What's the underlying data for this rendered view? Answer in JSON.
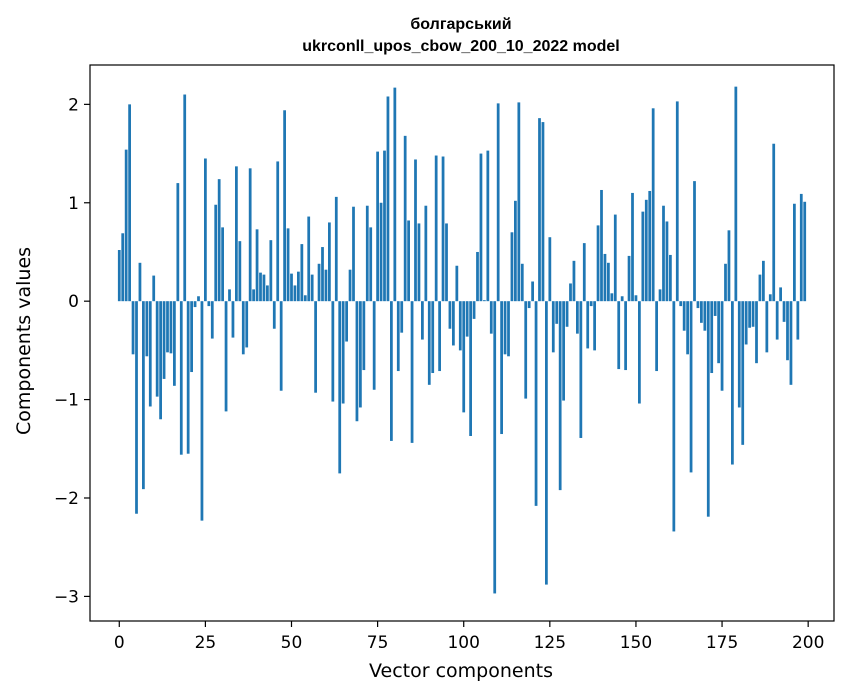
{
  "chart_data": {
    "type": "bar",
    "title": "болгарський",
    "subtitle": "ukrconll_upos_cbow_200_10_2022 model",
    "xlabel": "Vector components",
    "ylabel": "Components values",
    "xlim": [
      -8.5,
      207.5
    ],
    "ylim": [
      -3.25,
      2.4
    ],
    "xticks": [
      0,
      25,
      50,
      75,
      100,
      125,
      150,
      175,
      200
    ],
    "yticks": [
      -3,
      -2,
      -1,
      0,
      1,
      2
    ],
    "bar_color": "#1f77b4",
    "x": [
      0,
      1,
      2,
      3,
      4,
      5,
      6,
      7,
      8,
      9,
      10,
      11,
      12,
      13,
      14,
      15,
      16,
      17,
      18,
      19,
      20,
      21,
      22,
      23,
      24,
      25,
      26,
      27,
      28,
      29,
      30,
      31,
      32,
      33,
      34,
      35,
      36,
      37,
      38,
      39,
      40,
      41,
      42,
      43,
      44,
      45,
      46,
      47,
      48,
      49,
      50,
      51,
      52,
      53,
      54,
      55,
      56,
      57,
      58,
      59,
      60,
      61,
      62,
      63,
      64,
      65,
      66,
      67,
      68,
      69,
      70,
      71,
      72,
      73,
      74,
      75,
      76,
      77,
      78,
      79,
      80,
      81,
      82,
      83,
      84,
      85,
      86,
      87,
      88,
      89,
      90,
      91,
      92,
      93,
      94,
      95,
      96,
      97,
      98,
      99,
      100,
      101,
      102,
      103,
      104,
      105,
      106,
      107,
      108,
      109,
      110,
      111,
      112,
      113,
      114,
      115,
      116,
      117,
      118,
      119,
      120,
      121,
      122,
      123,
      124,
      125,
      126,
      127,
      128,
      129,
      130,
      131,
      132,
      133,
      134,
      135,
      136,
      137,
      138,
      139,
      140,
      141,
      142,
      143,
      144,
      145,
      146,
      147,
      148,
      149,
      150,
      151,
      152,
      153,
      154,
      155,
      156,
      157,
      158,
      159,
      160,
      161,
      162,
      163,
      164,
      165,
      166,
      167,
      168,
      169,
      170,
      171,
      172,
      173,
      174,
      175,
      176,
      177,
      178,
      179,
      180,
      181,
      182,
      183,
      184,
      185,
      186,
      187,
      188,
      189,
      190,
      191,
      192,
      193,
      194,
      195,
      196,
      197,
      198,
      199
    ],
    "values": [
      0.52,
      0.69,
      1.54,
      2.0,
      -0.54,
      -2.16,
      0.39,
      -1.91,
      -0.56,
      -1.07,
      0.26,
      -0.97,
      -1.2,
      -0.79,
      -0.52,
      -0.53,
      -0.86,
      1.2,
      -1.56,
      2.1,
      -1.55,
      -0.72,
      -0.06,
      0.05,
      -2.23,
      1.45,
      -0.05,
      -0.38,
      0.98,
      1.24,
      0.75,
      -1.12,
      0.12,
      -0.37,
      1.37,
      0.61,
      -0.54,
      -0.47,
      1.35,
      0.12,
      0.73,
      0.29,
      0.27,
      0.16,
      0.62,
      -0.28,
      1.42,
      -0.91,
      1.94,
      0.74,
      0.28,
      0.16,
      0.3,
      0.58,
      0.06,
      0.86,
      0.27,
      -0.93,
      0.38,
      0.55,
      0.32,
      0.8,
      -1.02,
      1.06,
      -1.75,
      -1.04,
      -0.41,
      0.32,
      0.96,
      -1.22,
      -1.08,
      -0.7,
      0.97,
      0.75,
      -0.9,
      1.52,
      1.0,
      1.53,
      2.08,
      -1.42,
      2.17,
      -0.71,
      -0.32,
      1.68,
      0.82,
      -1.44,
      1.44,
      0.79,
      -0.39,
      0.97,
      -0.85,
      -0.73,
      1.48,
      -0.71,
      1.47,
      0.79,
      -0.28,
      -0.45,
      0.36,
      -0.5,
      -1.13,
      -0.36,
      -1.37,
      -0.18,
      0.5,
      1.5,
      0.01,
      1.53,
      -0.33,
      -2.97,
      2.01,
      -1.35,
      -0.54,
      -0.56,
      0.7,
      1.02,
      2.02,
      0.38,
      -0.99,
      -0.07,
      0.2,
      -2.08,
      1.86,
      1.82,
      -2.88,
      0.65,
      -0.52,
      -0.23,
      -1.92,
      -1.01,
      -0.26,
      0.18,
      0.41,
      -0.33,
      -1.39,
      0.59,
      -0.48,
      -0.05,
      -0.5,
      0.77,
      1.13,
      0.48,
      0.39,
      0.08,
      0.88,
      -0.69,
      0.05,
      -0.7,
      0.46,
      1.1,
      0.06,
      -1.04,
      0.91,
      1.03,
      1.12,
      1.96,
      -0.71,
      0.12,
      0.97,
      0.81,
      0.47,
      -2.34,
      2.03,
      -0.05,
      -0.3,
      -0.54,
      -1.74,
      1.22,
      -0.07,
      -0.22,
      -0.3,
      -2.19,
      -0.73,
      -0.15,
      -0.63,
      -0.91,
      0.38,
      0.72,
      -1.66,
      2.18,
      -1.08,
      -1.46,
      -0.44,
      -0.27,
      -0.26,
      -0.63,
      0.27,
      0.41,
      -0.52,
      0.07,
      1.6,
      -0.39,
      0.14,
      -0.21,
      -0.6,
      -0.85,
      0.99,
      -0.39,
      1.09,
      1.01
    ]
  }
}
